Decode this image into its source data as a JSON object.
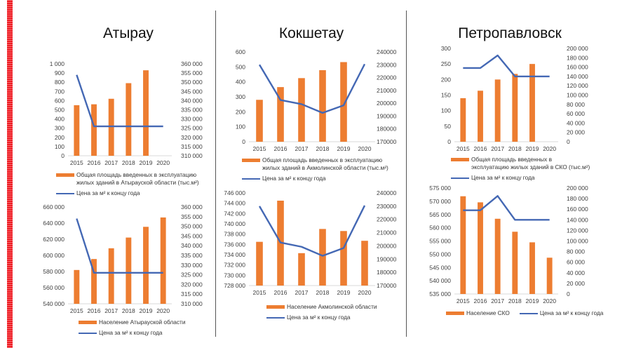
{
  "colors": {
    "bar": "#ed7d31",
    "line": "#4468b4",
    "accent_border": "#ee1c24"
  },
  "cities": [
    {
      "name": "Атырау"
    },
    {
      "name": "Кокшетау"
    },
    {
      "name": "Петропавловск"
    }
  ],
  "chart_data": [
    {
      "id": "atyrau-construction",
      "city": "Атырау",
      "type": "bar",
      "categories": [
        "2015",
        "2016",
        "2017",
        "2018",
        "2019",
        "2020"
      ],
      "series": [
        {
          "name": "Общая площадь введенных в эксплуатацию жилых зданий в Атырауской области (тыс.м²)",
          "kind": "bar",
          "axis": "left",
          "values": [
            550,
            560,
            620,
            790,
            930,
            null
          ]
        },
        {
          "name": "Цена за м² к концу года",
          "kind": "line",
          "axis": "right",
          "values": [
            354000,
            326000,
            326000,
            326000,
            326000,
            326000
          ]
        }
      ],
      "left_axis": {
        "min": 0,
        "max": 1000,
        "step": 100,
        "tick_labels": [
          "0",
          "100",
          "200",
          "300",
          "400",
          "500",
          "600",
          "700",
          "800",
          "900",
          "1 000"
        ]
      },
      "right_axis": {
        "min": 310000,
        "max": 360000,
        "step": 5000,
        "tick_labels": [
          "310 000",
          "315 000",
          "320 000",
          "325 000",
          "330 000",
          "335 000",
          "340 000",
          "345 000",
          "350 000",
          "355 000",
          "360 000"
        ]
      },
      "legend": [
        "Общая площадь введенных в эксплуатацию жилых зданий в Атырауской области (тыс.м²)",
        "Цена за м² к концу года"
      ],
      "legend_placement": "bottom",
      "grid": false
    },
    {
      "id": "atyrau-population",
      "city": "Атырау",
      "type": "bar",
      "categories": [
        "2015",
        "2016",
        "2017",
        "2018",
        "2019",
        "2020"
      ],
      "series": [
        {
          "name": "Население Атырауской области",
          "kind": "bar",
          "axis": "left",
          "values": [
            581900,
            595500,
            608800,
            622100,
            635400,
            647000
          ]
        },
        {
          "name": "Цена за м² к концу года",
          "kind": "line",
          "axis": "right",
          "values": [
            354000,
            326000,
            326000,
            326000,
            326000,
            326000
          ]
        }
      ],
      "left_axis": {
        "min": 540000,
        "max": 660000,
        "step": 20000,
        "tick_labels": [
          "540 000",
          "560 000",
          "580 000",
          "600 000",
          "620 000",
          "640 000",
          "660 000"
        ]
      },
      "right_axis": {
        "min": 310000,
        "max": 360000,
        "step": 5000,
        "tick_labels": [
          "310 000",
          "315 000",
          "320 000",
          "325 000",
          "330 000",
          "335 000",
          "340 000",
          "345 000",
          "350 000",
          "355 000",
          "360 000"
        ]
      },
      "legend": [
        "Население Атырауской области",
        "Цена за м² к концу года"
      ],
      "legend_placement": "bottom",
      "grid": false
    },
    {
      "id": "kokshetau-construction",
      "city": "Кокшетау",
      "type": "bar",
      "categories": [
        "2015",
        "2016",
        "2017",
        "2018",
        "2019",
        "2020"
      ],
      "series": [
        {
          "name": "Общая площадь введенных в эксплуатацию жилых зданий в Акмолинской области (тыс.м²)",
          "kind": "bar",
          "axis": "left",
          "values": [
            280,
            365,
            425,
            478,
            532,
            null
          ]
        },
        {
          "name": "Цена за м² к концу года",
          "kind": "line",
          "axis": "right",
          "values": [
            230000,
            202500,
            199300,
            192500,
            198400,
            230500
          ]
        }
      ],
      "left_axis": {
        "min": 0,
        "max": 600,
        "step": 100,
        "tick_labels": [
          "0",
          "100",
          "200",
          "300",
          "400",
          "500",
          "600"
        ]
      },
      "right_axis": {
        "min": 170000,
        "max": 240000,
        "step": 10000,
        "tick_labels": [
          "170000",
          "180000",
          "190000",
          "200000",
          "210000",
          "220000",
          "230000",
          "240000"
        ]
      },
      "legend": [
        "Общая площадь введенных в эксплуатацию жилых зданий в Акмолинской области (тыс.м²)",
        "Цена за м² к концу года"
      ],
      "legend_placement": "bottom",
      "grid": false
    },
    {
      "id": "kokshetau-population",
      "city": "Кокшетау",
      "type": "bar",
      "categories": [
        "2015",
        "2016",
        "2017",
        "2018",
        "2019",
        "2020"
      ],
      "series": [
        {
          "name": "Население Акмолинской области",
          "kind": "bar",
          "axis": "left",
          "values": [
            736500,
            744500,
            734300,
            739000,
            738600,
            736700
          ]
        },
        {
          "name": "Цена за м² к концу года",
          "kind": "line",
          "axis": "right",
          "values": [
            230000,
            202500,
            199300,
            192500,
            198400,
            230500
          ]
        }
      ],
      "left_axis": {
        "min": 728000,
        "max": 746000,
        "step": 2000,
        "tick_labels": [
          "728 000",
          "730 000",
          "732 000",
          "734 000",
          "736 000",
          "738 000",
          "740 000",
          "742 000",
          "744 000",
          "746 000"
        ]
      },
      "right_axis": {
        "min": 170000,
        "max": 240000,
        "step": 10000,
        "tick_labels": [
          "170000",
          "180000",
          "190000",
          "200000",
          "210000",
          "220000",
          "230000",
          "240000"
        ]
      },
      "legend": [
        "Население Акмолинской области",
        "Цена за м² к концу года"
      ],
      "legend_placement": "bottom",
      "grid": false
    },
    {
      "id": "petropavlovsk-construction",
      "city": "Петропавловск",
      "type": "bar",
      "categories": [
        "2015",
        "2016",
        "2017",
        "2018",
        "2019",
        "2020"
      ],
      "series": [
        {
          "name": "Общая площадь введенных в эксплуатацию жилых зданий в СКО (тыс.м²)",
          "kind": "bar",
          "axis": "left",
          "values": [
            140,
            164,
            200,
            218,
            250,
            null
          ]
        },
        {
          "name": "Цена за м² к концу года",
          "kind": "line",
          "axis": "right",
          "values": [
            158000,
            158000,
            185000,
            140000,
            140000,
            140000
          ]
        }
      ],
      "left_axis": {
        "min": 0,
        "max": 300,
        "step": 50,
        "tick_labels": [
          "0",
          "50",
          "100",
          "150",
          "200",
          "250",
          "300"
        ]
      },
      "right_axis": {
        "min": 0,
        "max": 200000,
        "step": 20000,
        "tick_labels": [
          "0",
          "20 000",
          "40 000",
          "60 000",
          "80 000",
          "100 000",
          "120 000",
          "140 000",
          "160 000",
          "180 000",
          "200 000"
        ]
      },
      "legend": [
        "Общая площадь введенных в эксплуатацию жилых зданий в СКО (тыс.м²)",
        "Цена за м² к концу года"
      ],
      "legend_placement": "bottom",
      "grid": false
    },
    {
      "id": "petropavlovsk-population",
      "city": "Петропавловск",
      "type": "bar",
      "categories": [
        "2015",
        "2016",
        "2017",
        "2018",
        "2019",
        "2020"
      ],
      "series": [
        {
          "name": "Население СКО",
          "kind": "bar",
          "axis": "left",
          "values": [
            571900,
            569600,
            563400,
            558500,
            554500,
            548700
          ]
        },
        {
          "name": "Цена за м² к концу года",
          "kind": "line",
          "axis": "right",
          "values": [
            158000,
            158000,
            185000,
            140000,
            140000,
            140000
          ]
        }
      ],
      "left_axis": {
        "min": 535000,
        "max": 575000,
        "step": 5000,
        "tick_labels": [
          "535 000",
          "540 000",
          "545 000",
          "550 000",
          "555 000",
          "560 000",
          "565 000",
          "570 000",
          "575 000"
        ]
      },
      "right_axis": {
        "min": 0,
        "max": 200000,
        "step": 20000,
        "tick_labels": [
          "0",
          "20 000",
          "40 000",
          "60 000",
          "80 000",
          "100 000",
          "120 000",
          "140 000",
          "160 000",
          "180 000",
          "200 000"
        ]
      },
      "legend": [
        "Население СКО",
        "Цена за м² к концу года"
      ],
      "legend_placement": "bottom",
      "grid": false
    }
  ]
}
